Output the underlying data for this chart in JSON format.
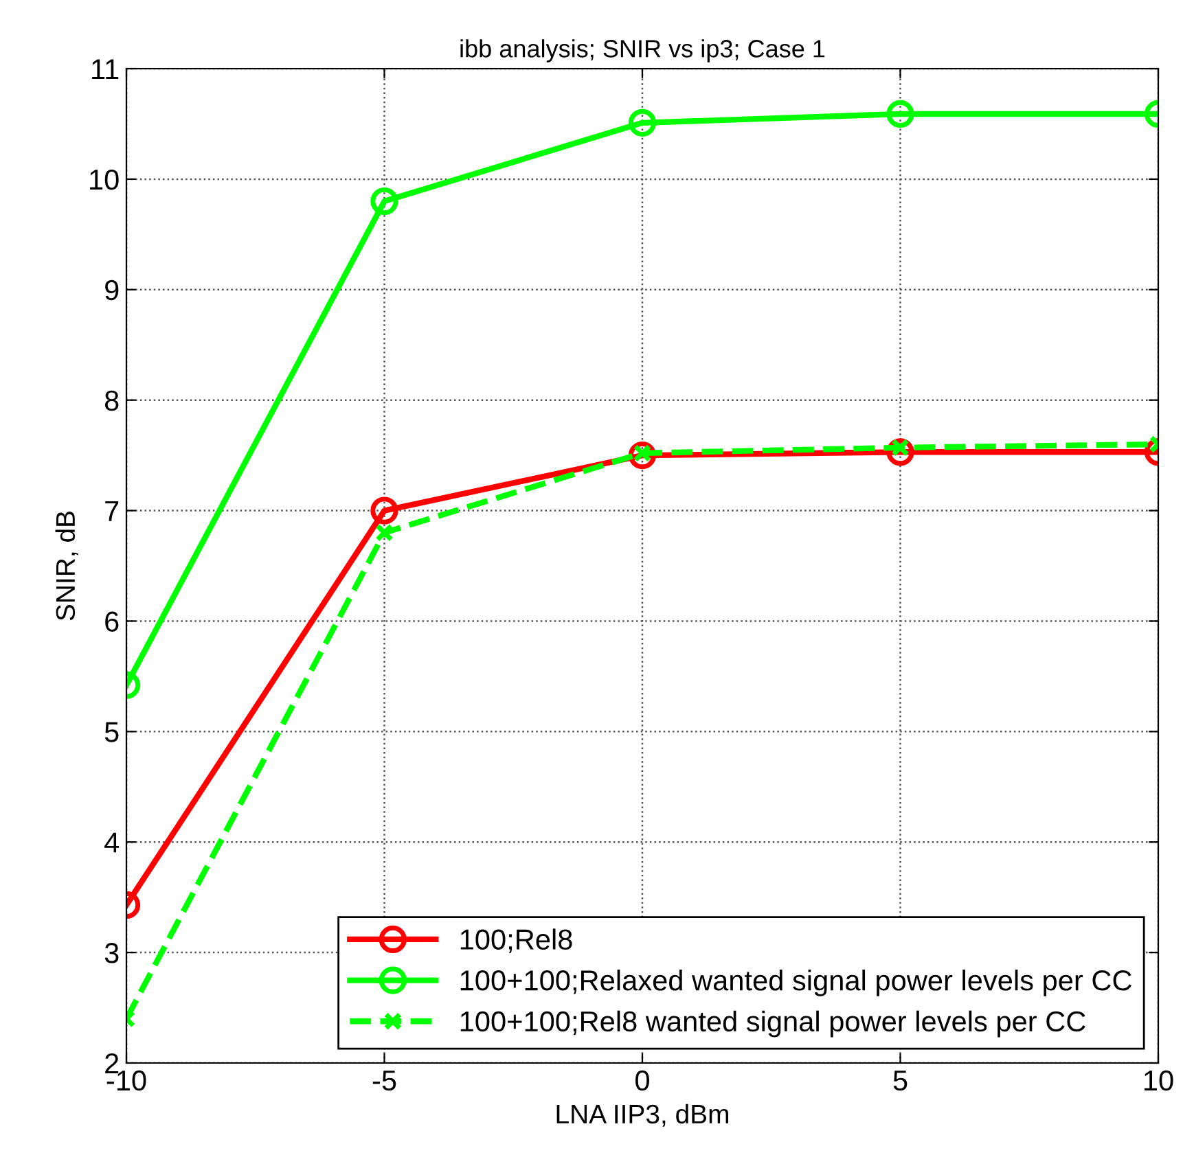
{
  "chart_data": {
    "type": "line",
    "title": "ibb analysis; SNIR vs ip3; Case 1",
    "xlabel": "LNA IIP3, dBm",
    "ylabel": "SNIR, dB",
    "x": [
      -10,
      -5,
      0,
      5,
      10
    ],
    "series": [
      {
        "name": "100;Rel8",
        "color": "#ff0000",
        "marker": "circle",
        "line_style": "solid",
        "values": [
          3.43,
          7.0,
          7.5,
          7.53,
          7.53
        ]
      },
      {
        "name": "100+100;Relaxed wanted signal power levels per CC",
        "color": "#00ff00",
        "marker": "circle",
        "line_style": "solid",
        "values": [
          5.42,
          9.8,
          10.51,
          10.59,
          10.59
        ]
      },
      {
        "name": "100+100;Rel8 wanted signal power levels per CC",
        "color": "#00ff00",
        "marker": "cross",
        "line_style": "dashed",
        "values": [
          2.4,
          6.8,
          7.52,
          7.57,
          7.6
        ]
      }
    ],
    "xlim": [
      -10,
      10
    ],
    "xticks": [
      -10,
      -5,
      0,
      5,
      10
    ],
    "ylim": [
      2,
      11
    ],
    "yticks": [
      2,
      3,
      4,
      5,
      6,
      7,
      8,
      9,
      10,
      11
    ],
    "grid": true,
    "legend": "bottom right"
  }
}
